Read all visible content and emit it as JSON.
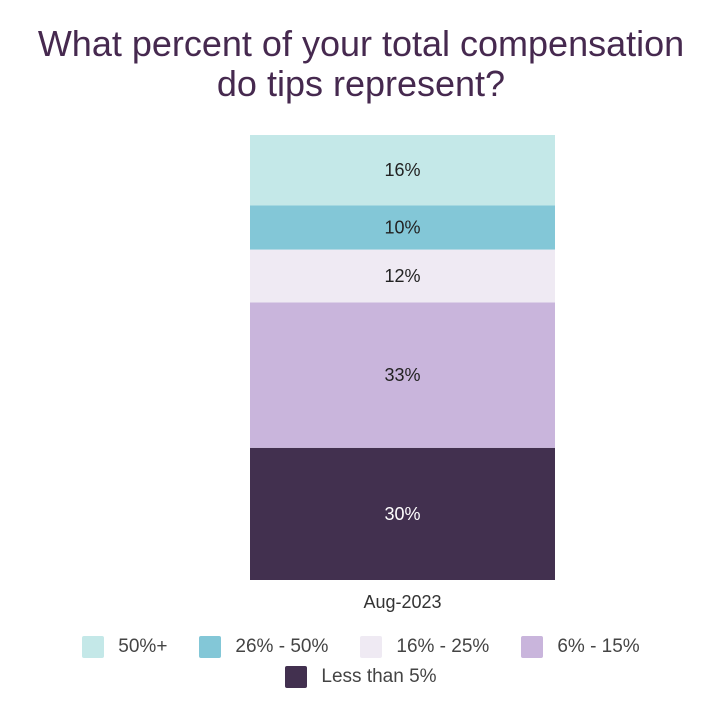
{
  "title_lines": [
    "What percent of your total compensation",
    "do tips represent?"
  ],
  "chart_data": {
    "type": "bar",
    "stacked": true,
    "categories": [
      "Aug-2023"
    ],
    "series": [
      {
        "name": "Less than 5%",
        "values": [
          30
        ],
        "label": "30%",
        "color": "#42304f",
        "label_color": "#ffffff"
      },
      {
        "name": "6% - 15%",
        "values": [
          33
        ],
        "label": "33%",
        "color": "#c9b5dc",
        "label_color": "#222222"
      },
      {
        "name": "16% - 25%",
        "values": [
          12
        ],
        "label": "12%",
        "color": "#efeaf3",
        "label_color": "#222222"
      },
      {
        "name": "26% - 50%",
        "values": [
          10
        ],
        "label": "10%",
        "color": "#83c7d7",
        "label_color": "#222222"
      },
      {
        "name": "50%+",
        "values": [
          16
        ],
        "label": "16%",
        "color": "#c4e8e8",
        "label_color": "#222222"
      }
    ],
    "legend": {
      "position": "bottom",
      "rows": [
        [
          "50%+",
          "26% - 50%",
          "16% - 25%",
          "6% - 15%"
        ],
        [
          "Less than 5%"
        ]
      ]
    },
    "grid": false
  }
}
